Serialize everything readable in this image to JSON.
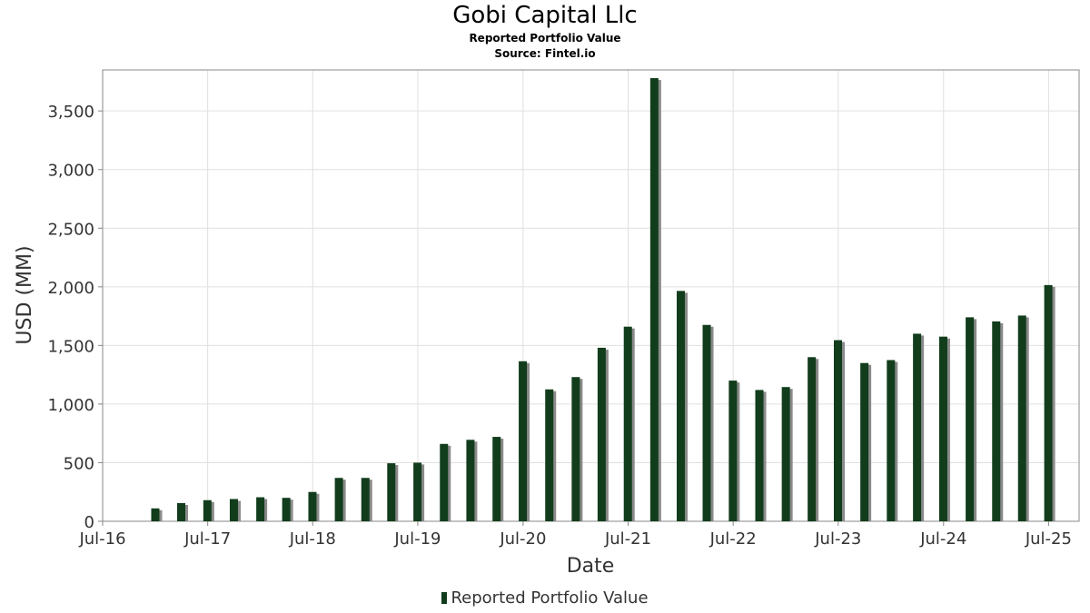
{
  "header": {
    "title": "Gobi Capital Llc",
    "subtitle": "Reported Portfolio Value",
    "source": "Source: Fintel.io"
  },
  "colors": {
    "bar": "#123d1c",
    "bar_shadow": "#8a8a8a",
    "grid": "#e0e0e0",
    "axis": "#888888",
    "text": "#333333"
  },
  "chart_data": {
    "type": "bar",
    "title": "Gobi Capital Llc",
    "xlabel": "Date",
    "ylabel": "USD (MM)",
    "ylim": [
      0,
      3850
    ],
    "xlim": [
      "2016-07-01",
      "2025-10-15"
    ],
    "yticks": [
      0,
      500,
      1000,
      1500,
      2000,
      2500,
      3000,
      3500
    ],
    "ytick_labels": [
      "0",
      "500",
      "1,000",
      "1,500",
      "2,000",
      "2,500",
      "3,000",
      "3,500"
    ],
    "xticks": [
      "2016-07-01",
      "2017-07-01",
      "2018-07-01",
      "2019-07-01",
      "2020-07-01",
      "2021-07-01",
      "2022-07-01",
      "2023-07-01",
      "2024-07-01",
      "2025-07-01"
    ],
    "xtick_labels": [
      "Jul-16",
      "Jul-17",
      "Jul-18",
      "Jul-19",
      "Jul-20",
      "Jul-21",
      "Jul-22",
      "Jul-23",
      "Jul-24",
      "Jul-25"
    ],
    "grid": true,
    "legend_position": "bottom-center",
    "series": [
      {
        "name": "Reported Portfolio Value",
        "x": [
          "2016-12-31",
          "2017-03-31",
          "2017-06-30",
          "2017-09-30",
          "2017-12-31",
          "2018-03-31",
          "2018-06-30",
          "2018-09-30",
          "2018-12-31",
          "2019-03-31",
          "2019-06-30",
          "2019-09-30",
          "2019-12-31",
          "2020-03-31",
          "2020-06-30",
          "2020-09-30",
          "2020-12-31",
          "2021-03-31",
          "2021-06-30",
          "2021-09-30",
          "2021-12-31",
          "2022-03-31",
          "2022-06-30",
          "2022-09-30",
          "2022-12-31",
          "2023-03-31",
          "2023-06-30",
          "2023-09-30",
          "2023-12-31",
          "2024-03-31",
          "2024-06-30",
          "2024-09-30",
          "2024-12-31",
          "2025-03-31",
          "2025-06-30"
        ],
        "values": [
          110,
          155,
          180,
          190,
          205,
          200,
          250,
          370,
          370,
          495,
          500,
          660,
          695,
          720,
          1365,
          1125,
          1230,
          1480,
          1660,
          3780,
          1965,
          1675,
          1200,
          1120,
          1145,
          1400,
          1545,
          1350,
          1375,
          1600,
          1575,
          1740,
          1705,
          1755,
          2015
        ]
      }
    ]
  },
  "legend": {
    "label": "Reported Portfolio Value"
  }
}
